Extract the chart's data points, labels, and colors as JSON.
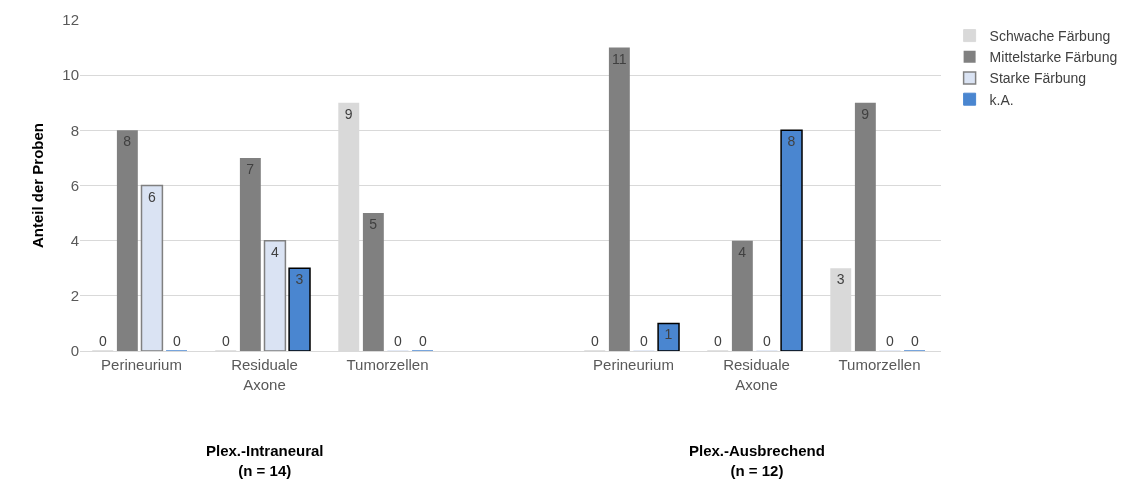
{
  "chart_data": {
    "type": "bar",
    "ylabel": "Anteil der Proben",
    "categories": [
      "Perineurium",
      "Residuale Axone",
      "Tumorzellen",
      null,
      "Perineurium",
      "Residuale Axone",
      "Tumorzellen"
    ],
    "series": [
      {
        "name": "Schwache Färbung",
        "color": "#d9d9d9",
        "values": [
          0,
          0,
          9,
          null,
          0,
          0,
          3
        ]
      },
      {
        "name": "Mittelstarke Färbung",
        "color": "#808080",
        "values": [
          8,
          7,
          5,
          null,
          11,
          4,
          9
        ]
      },
      {
        "name": "Starke Färbung",
        "color": "#dae3f3",
        "values": [
          6,
          4,
          0,
          null,
          0,
          0,
          0
        ]
      },
      {
        "name": "k.A.",
        "color": "#4a86d0",
        "values": [
          0,
          3,
          0,
          null,
          1,
          8,
          0
        ]
      }
    ],
    "annotations": [
      "Plex.-Intraneural (n = 14)",
      "Plex.-Ausbrechend (n = 12)"
    ],
    "ylim": [
      0,
      12
    ],
    "yticks": [
      0,
      2,
      4,
      6,
      8,
      10,
      12
    ],
    "grid": "y",
    "legend": "right",
    "data_labels": true
  }
}
